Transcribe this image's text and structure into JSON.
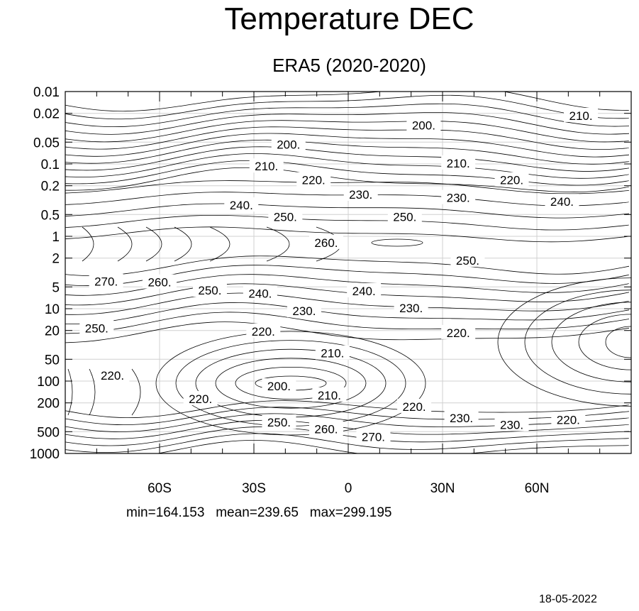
{
  "chart_data": {
    "type": "contour",
    "title": "Temperature DEC",
    "subtitle": "ERA5 (2020-2020)",
    "xlim": [
      -90,
      90
    ],
    "xticks": [
      {
        "value": -60,
        "label": "60S"
      },
      {
        "value": -30,
        "label": "30S"
      },
      {
        "value": 0,
        "label": "0"
      },
      {
        "value": 30,
        "label": "30N"
      },
      {
        "value": 60,
        "label": "60N"
      }
    ],
    "yscale": "log",
    "ylim": [
      1000,
      0.01
    ],
    "yticks": [
      {
        "value": 0.01,
        "label": "0.01"
      },
      {
        "value": 0.02,
        "label": "0.02"
      },
      {
        "value": 0.05,
        "label": "0.05"
      },
      {
        "value": 0.1,
        "label": "0.1"
      },
      {
        "value": 0.2,
        "label": "0.2"
      },
      {
        "value": 0.5,
        "label": "0.5"
      },
      {
        "value": 1,
        "label": "1"
      },
      {
        "value": 2,
        "label": "2"
      },
      {
        "value": 5,
        "label": "5"
      },
      {
        "value": 10,
        "label": "10"
      },
      {
        "value": 20,
        "label": "20"
      },
      {
        "value": 50,
        "label": "50"
      },
      {
        "value": 100,
        "label": "100"
      },
      {
        "value": 200,
        "label": "200"
      },
      {
        "value": 500,
        "label": "500"
      },
      {
        "value": 1000,
        "label": "1000"
      }
    ],
    "grid": true,
    "contour_labels": [
      {
        "lat": -19,
        "p": 0.055,
        "text": "200."
      },
      {
        "lat": 24,
        "p": 0.03,
        "text": "200."
      },
      {
        "lat": 74,
        "p": 0.022,
        "text": "210."
      },
      {
        "lat": -26,
        "p": 0.11,
        "text": "210."
      },
      {
        "lat": 35,
        "p": 0.1,
        "text": "210."
      },
      {
        "lat": -11,
        "p": 0.17,
        "text": "220."
      },
      {
        "lat": 52,
        "p": 0.17,
        "text": "220."
      },
      {
        "lat": 4,
        "p": 0.27,
        "text": "230."
      },
      {
        "lat": 35,
        "p": 0.3,
        "text": "230."
      },
      {
        "lat": -34,
        "p": 0.38,
        "text": "240."
      },
      {
        "lat": 68,
        "p": 0.34,
        "text": "240."
      },
      {
        "lat": -20,
        "p": 0.55,
        "text": "250."
      },
      {
        "lat": 18,
        "p": 0.55,
        "text": "250."
      },
      {
        "lat": -7,
        "p": 1.25,
        "text": "260."
      },
      {
        "lat": 38,
        "p": 2.2,
        "text": "250."
      },
      {
        "lat": -77,
        "p": 4.3,
        "text": "270."
      },
      {
        "lat": -60,
        "p": 4.4,
        "text": "260."
      },
      {
        "lat": -44,
        "p": 5.7,
        "text": "250."
      },
      {
        "lat": -28,
        "p": 6.3,
        "text": "240."
      },
      {
        "lat": 5,
        "p": 5.8,
        "text": "240."
      },
      {
        "lat": -14,
        "p": 11,
        "text": "230."
      },
      {
        "lat": 20,
        "p": 10,
        "text": "230."
      },
      {
        "lat": -80,
        "p": 19,
        "text": "250."
      },
      {
        "lat": -27,
        "p": 21,
        "text": "220."
      },
      {
        "lat": 35,
        "p": 22,
        "text": "220."
      },
      {
        "lat": -5,
        "p": 42,
        "text": "210."
      },
      {
        "lat": -75,
        "p": 85,
        "text": "220."
      },
      {
        "lat": -47,
        "p": 180,
        "text": "220."
      },
      {
        "lat": -22,
        "p": 120,
        "text": "200."
      },
      {
        "lat": -6,
        "p": 160,
        "text": "210."
      },
      {
        "lat": 21,
        "p": 230,
        "text": "220."
      },
      {
        "lat": 36,
        "p": 330,
        "text": "230."
      },
      {
        "lat": 52,
        "p": 410,
        "text": "230."
      },
      {
        "lat": 70,
        "p": 350,
        "text": "220."
      },
      {
        "lat": -22,
        "p": 380,
        "text": "250."
      },
      {
        "lat": -7,
        "p": 470,
        "text": "260."
      },
      {
        "lat": 8,
        "p": 600,
        "text": "270."
      }
    ]
  },
  "stats_text": "min=164.153   mean=239.65   max=299.195",
  "date_text": "18-05-2022"
}
